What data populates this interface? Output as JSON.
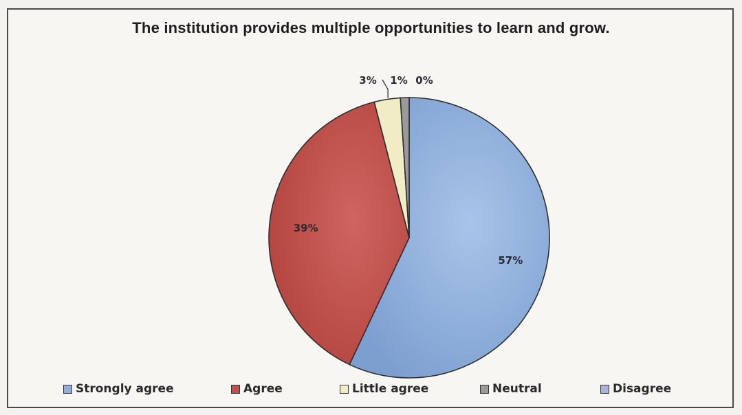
{
  "chart_data": {
    "type": "pie",
    "title": "The institution provides multiple opportunities to learn and grow.",
    "categories": [
      "Strongly agree",
      "Agree",
      "Little agree",
      "Neutral",
      "Disagree"
    ],
    "values": [
      57,
      39,
      3,
      1,
      0
    ],
    "labels": [
      "57%",
      "39%",
      "3%",
      "1%",
      "0%"
    ],
    "colors": [
      "#8fb0dc",
      "#c0504d",
      "#f1ecc6",
      "#9a9a9a",
      "#aab2d6"
    ],
    "legend_placement": "bottom"
  }
}
